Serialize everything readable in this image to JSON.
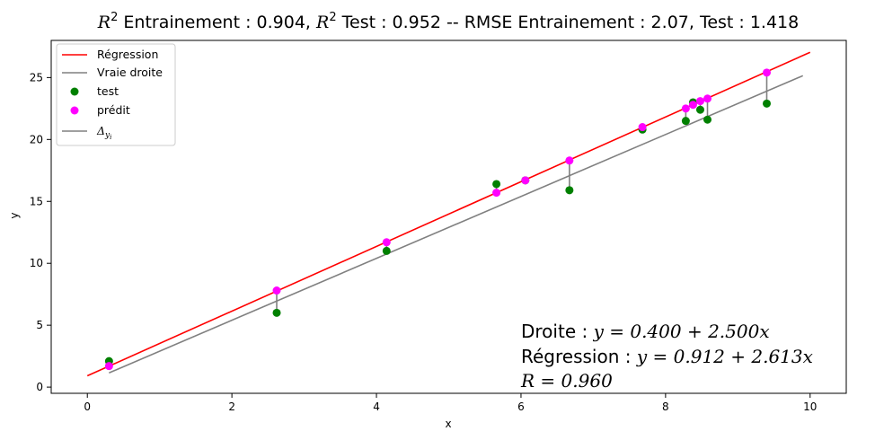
{
  "chart_data": {
    "type": "scatter",
    "title": "R² Entrainement : 0.904, R² Test : 0.952 --  RMSE Entrainement : 2.07, Test : 1.418",
    "title_parts": {
      "r2_symbol": "R",
      "r2_sup": "2",
      "train_label": " Entrainement : 0.904, ",
      "test_label": " Test : 0.952 --  RMSE Entrainement : 2.07, Test : 1.418"
    },
    "xlabel": "x",
    "ylabel": "y",
    "xlim": [
      -0.5,
      10.5
    ],
    "ylim": [
      -0.5,
      28.0
    ],
    "xticks": [
      0,
      2,
      4,
      6,
      8,
      10
    ],
    "yticks": [
      0,
      5,
      10,
      15,
      20,
      25
    ],
    "grid": false,
    "legend_position": "upper-left",
    "legend": [
      {
        "label": "Régression",
        "kind": "line",
        "color": "#ff0000"
      },
      {
        "label": "Vraie droite",
        "kind": "line",
        "color": "#808080"
      },
      {
        "label": "test",
        "kind": "marker",
        "color": "#008000"
      },
      {
        "label": "prédit",
        "kind": "marker",
        "color": "#ff00ff"
      },
      {
        "label": "Δ",
        "sub": "y",
        "subsub": "i",
        "kind": "line",
        "color": "#808080"
      }
    ],
    "regression": {
      "intercept": 0.912,
      "slope": 2.613,
      "x_range": [
        0,
        10
      ],
      "color": "#ff0000"
    },
    "true_line": {
      "intercept": 0.4,
      "slope": 2.5,
      "x_range": [
        0.3,
        9.9
      ],
      "color": "#808080"
    },
    "test": {
      "color": "#008000",
      "x": [
        0.3,
        2.62,
        4.14,
        5.66,
        6.06,
        6.67,
        7.68,
        8.28,
        8.38,
        8.48,
        8.58,
        9.4
      ],
      "y": [
        2.1,
        6.0,
        11.0,
        16.4,
        16.7,
        15.9,
        20.8,
        21.5,
        23.0,
        22.4,
        21.6,
        22.9
      ]
    },
    "predicted": {
      "color": "#ff00ff",
      "x": [
        0.3,
        2.62,
        4.14,
        5.66,
        6.06,
        6.67,
        7.68,
        8.28,
        8.38,
        8.48,
        8.58,
        9.4
      ],
      "y": [
        1.7,
        7.8,
        11.7,
        15.7,
        16.7,
        18.3,
        21.0,
        22.5,
        22.8,
        23.1,
        23.3,
        25.4
      ]
    },
    "annotations": {
      "line1_label": "Droite : ",
      "line1_eq": "y = 0.400 + 2.500x",
      "line2_label": "Régression : ",
      "line2_eq": "y = 0.912 + 2.613x",
      "line3_eq": "R = 0.960"
    }
  }
}
